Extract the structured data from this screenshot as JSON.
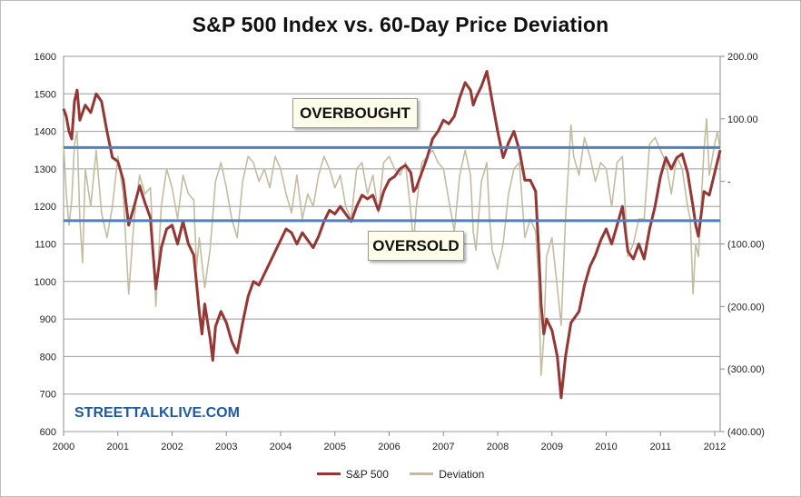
{
  "chart_data": {
    "type": "line",
    "title": "S&P 500 Index vs. 60-Day Price Deviation",
    "x_labels": [
      "2000",
      "2001",
      "2002",
      "2003",
      "2004",
      "2005",
      "2006",
      "2007",
      "2008",
      "2009",
      "2010",
      "2011",
      "2012"
    ],
    "y_left": {
      "min": 600,
      "max": 1600,
      "ticks": [
        1600,
        1500,
        1400,
        1300,
        1200,
        1100,
        1000,
        900,
        800,
        700,
        600
      ]
    },
    "y_right": {
      "min": -400,
      "max": 200,
      "ticks": [
        200,
        100,
        0,
        -100,
        -200,
        -300,
        -400
      ],
      "tick_labels": [
        "200.00",
        "100.00",
        "-",
        "(100.00)",
        "(200.00)",
        "(300.00)",
        "(400.00)"
      ]
    },
    "series": [
      {
        "name": "S&P 500",
        "color": "#953735",
        "axis": "left",
        "points": [
          [
            2000.0,
            1460
          ],
          [
            2000.05,
            1440
          ],
          [
            2000.1,
            1400
          ],
          [
            2000.15,
            1380
          ],
          [
            2000.2,
            1480
          ],
          [
            2000.25,
            1510
          ],
          [
            2000.3,
            1430
          ],
          [
            2000.4,
            1470
          ],
          [
            2000.5,
            1450
          ],
          [
            2000.6,
            1500
          ],
          [
            2000.7,
            1480
          ],
          [
            2000.8,
            1400
          ],
          [
            2000.9,
            1330
          ],
          [
            2001.0,
            1320
          ],
          [
            2001.1,
            1270
          ],
          [
            2001.2,
            1150
          ],
          [
            2001.3,
            1200
          ],
          [
            2001.4,
            1255
          ],
          [
            2001.5,
            1210
          ],
          [
            2001.6,
            1170
          ],
          [
            2001.7,
            980
          ],
          [
            2001.8,
            1090
          ],
          [
            2001.9,
            1140
          ],
          [
            2002.0,
            1150
          ],
          [
            2002.1,
            1100
          ],
          [
            2002.2,
            1160
          ],
          [
            2002.3,
            1100
          ],
          [
            2002.4,
            1070
          ],
          [
            2002.5,
            920
          ],
          [
            2002.55,
            860
          ],
          [
            2002.6,
            940
          ],
          [
            2002.7,
            850
          ],
          [
            2002.75,
            790
          ],
          [
            2002.8,
            880
          ],
          [
            2002.9,
            920
          ],
          [
            2003.0,
            890
          ],
          [
            2003.1,
            840
          ],
          [
            2003.2,
            810
          ],
          [
            2003.3,
            890
          ],
          [
            2003.4,
            960
          ],
          [
            2003.5,
            1000
          ],
          [
            2003.6,
            990
          ],
          [
            2003.7,
            1020
          ],
          [
            2003.8,
            1050
          ],
          [
            2003.9,
            1080
          ],
          [
            2004.0,
            1110
          ],
          [
            2004.1,
            1140
          ],
          [
            2004.2,
            1130
          ],
          [
            2004.3,
            1100
          ],
          [
            2004.4,
            1130
          ],
          [
            2004.5,
            1110
          ],
          [
            2004.6,
            1090
          ],
          [
            2004.7,
            1120
          ],
          [
            2004.8,
            1160
          ],
          [
            2004.9,
            1190
          ],
          [
            2005.0,
            1180
          ],
          [
            2005.1,
            1200
          ],
          [
            2005.2,
            1180
          ],
          [
            2005.3,
            1160
          ],
          [
            2005.4,
            1200
          ],
          [
            2005.5,
            1230
          ],
          [
            2005.6,
            1220
          ],
          [
            2005.7,
            1230
          ],
          [
            2005.8,
            1190
          ],
          [
            2005.9,
            1240
          ],
          [
            2006.0,
            1270
          ],
          [
            2006.1,
            1280
          ],
          [
            2006.2,
            1300
          ],
          [
            2006.3,
            1310
          ],
          [
            2006.4,
            1290
          ],
          [
            2006.45,
            1240
          ],
          [
            2006.5,
            1250
          ],
          [
            2006.6,
            1290
          ],
          [
            2006.7,
            1330
          ],
          [
            2006.8,
            1380
          ],
          [
            2006.9,
            1400
          ],
          [
            2007.0,
            1430
          ],
          [
            2007.1,
            1420
          ],
          [
            2007.2,
            1440
          ],
          [
            2007.3,
            1490
          ],
          [
            2007.4,
            1530
          ],
          [
            2007.5,
            1510
          ],
          [
            2007.55,
            1470
          ],
          [
            2007.6,
            1490
          ],
          [
            2007.7,
            1520
          ],
          [
            2007.8,
            1560
          ],
          [
            2007.85,
            1520
          ],
          [
            2007.9,
            1480
          ],
          [
            2008.0,
            1400
          ],
          [
            2008.1,
            1330
          ],
          [
            2008.2,
            1370
          ],
          [
            2008.3,
            1400
          ],
          [
            2008.4,
            1350
          ],
          [
            2008.5,
            1270
          ],
          [
            2008.6,
            1270
          ],
          [
            2008.7,
            1240
          ],
          [
            2008.75,
            1100
          ],
          [
            2008.8,
            940
          ],
          [
            2008.85,
            860
          ],
          [
            2008.9,
            900
          ],
          [
            2009.0,
            870
          ],
          [
            2009.1,
            800
          ],
          [
            2009.17,
            690
          ],
          [
            2009.25,
            800
          ],
          [
            2009.35,
            890
          ],
          [
            2009.5,
            920
          ],
          [
            2009.6,
            990
          ],
          [
            2009.7,
            1040
          ],
          [
            2009.8,
            1070
          ],
          [
            2009.9,
            1110
          ],
          [
            2010.0,
            1140
          ],
          [
            2010.1,
            1100
          ],
          [
            2010.2,
            1150
          ],
          [
            2010.3,
            1200
          ],
          [
            2010.4,
            1080
          ],
          [
            2010.5,
            1060
          ],
          [
            2010.6,
            1100
          ],
          [
            2010.7,
            1060
          ],
          [
            2010.8,
            1140
          ],
          [
            2010.9,
            1200
          ],
          [
            2011.0,
            1280
          ],
          [
            2011.1,
            1330
          ],
          [
            2011.2,
            1300
          ],
          [
            2011.3,
            1330
          ],
          [
            2011.4,
            1340
          ],
          [
            2011.5,
            1290
          ],
          [
            2011.6,
            1200
          ],
          [
            2011.65,
            1150
          ],
          [
            2011.7,
            1120
          ],
          [
            2011.8,
            1240
          ],
          [
            2011.9,
            1230
          ],
          [
            2012.0,
            1290
          ],
          [
            2012.05,
            1320
          ],
          [
            2012.1,
            1350
          ]
        ]
      },
      {
        "name": "Deviation",
        "color": "#c4bca0",
        "axis": "right",
        "points": [
          [
            2000.0,
            60
          ],
          [
            2000.05,
            -20
          ],
          [
            2000.1,
            -70
          ],
          [
            2000.15,
            -30
          ],
          [
            2000.2,
            60
          ],
          [
            2000.25,
            80
          ],
          [
            2000.3,
            -60
          ],
          [
            2000.35,
            -130
          ],
          [
            2000.4,
            20
          ],
          [
            2000.5,
            -40
          ],
          [
            2000.6,
            50
          ],
          [
            2000.7,
            -50
          ],
          [
            2000.8,
            -90
          ],
          [
            2000.9,
            -40
          ],
          [
            2001.0,
            40
          ],
          [
            2001.1,
            -20
          ],
          [
            2001.2,
            -180
          ],
          [
            2001.3,
            -60
          ],
          [
            2001.4,
            10
          ],
          [
            2001.5,
            -20
          ],
          [
            2001.6,
            -10
          ],
          [
            2001.65,
            -100
          ],
          [
            2001.7,
            -200
          ],
          [
            2001.8,
            -40
          ],
          [
            2001.9,
            20
          ],
          [
            2002.0,
            -10
          ],
          [
            2002.1,
            -60
          ],
          [
            2002.2,
            10
          ],
          [
            2002.3,
            -20
          ],
          [
            2002.4,
            -30
          ],
          [
            2002.45,
            -140
          ],
          [
            2002.5,
            -90
          ],
          [
            2002.6,
            -170
          ],
          [
            2002.7,
            -110
          ],
          [
            2002.8,
            0
          ],
          [
            2002.9,
            30
          ],
          [
            2003.0,
            -10
          ],
          [
            2003.1,
            -60
          ],
          [
            2003.2,
            -90
          ],
          [
            2003.3,
            0
          ],
          [
            2003.4,
            40
          ],
          [
            2003.5,
            30
          ],
          [
            2003.6,
            0
          ],
          [
            2003.7,
            20
          ],
          [
            2003.8,
            -10
          ],
          [
            2003.9,
            40
          ],
          [
            2004.0,
            20
          ],
          [
            2004.1,
            -20
          ],
          [
            2004.2,
            -50
          ],
          [
            2004.3,
            10
          ],
          [
            2004.4,
            -60
          ],
          [
            2004.5,
            -20
          ],
          [
            2004.6,
            -40
          ],
          [
            2004.7,
            10
          ],
          [
            2004.8,
            40
          ],
          [
            2004.9,
            20
          ],
          [
            2005.0,
            -10
          ],
          [
            2005.1,
            10
          ],
          [
            2005.2,
            -40
          ],
          [
            2005.3,
            -60
          ],
          [
            2005.4,
            20
          ],
          [
            2005.5,
            30
          ],
          [
            2005.6,
            -20
          ],
          [
            2005.7,
            10
          ],
          [
            2005.8,
            -50
          ],
          [
            2005.9,
            30
          ],
          [
            2006.0,
            40
          ],
          [
            2006.1,
            20
          ],
          [
            2006.2,
            10
          ],
          [
            2006.3,
            30
          ],
          [
            2006.4,
            -50
          ],
          [
            2006.45,
            -100
          ],
          [
            2006.5,
            -40
          ],
          [
            2006.6,
            30
          ],
          [
            2006.7,
            40
          ],
          [
            2006.8,
            50
          ],
          [
            2006.9,
            30
          ],
          [
            2007.0,
            20
          ],
          [
            2007.1,
            -30
          ],
          [
            2007.2,
            -80
          ],
          [
            2007.3,
            10
          ],
          [
            2007.4,
            50
          ],
          [
            2007.5,
            10
          ],
          [
            2007.55,
            -80
          ],
          [
            2007.6,
            -110
          ],
          [
            2007.7,
            0
          ],
          [
            2007.8,
            30
          ],
          [
            2007.85,
            -60
          ],
          [
            2007.9,
            -110
          ],
          [
            2008.0,
            -140
          ],
          [
            2008.1,
            -100
          ],
          [
            2008.2,
            -20
          ],
          [
            2008.3,
            20
          ],
          [
            2008.4,
            30
          ],
          [
            2008.5,
            -90
          ],
          [
            2008.6,
            -60
          ],
          [
            2008.7,
            -80
          ],
          [
            2008.75,
            -150
          ],
          [
            2008.8,
            -310
          ],
          [
            2008.85,
            -250
          ],
          [
            2008.9,
            -120
          ],
          [
            2009.0,
            -90
          ],
          [
            2009.1,
            -170
          ],
          [
            2009.17,
            -230
          ],
          [
            2009.25,
            -60
          ],
          [
            2009.35,
            90
          ],
          [
            2009.4,
            40
          ],
          [
            2009.5,
            10
          ],
          [
            2009.6,
            70
          ],
          [
            2009.7,
            40
          ],
          [
            2009.8,
            0
          ],
          [
            2009.9,
            30
          ],
          [
            2010.0,
            20
          ],
          [
            2010.1,
            -40
          ],
          [
            2010.2,
            30
          ],
          [
            2010.3,
            40
          ],
          [
            2010.4,
            -120
          ],
          [
            2010.5,
            -100
          ],
          [
            2010.6,
            -60
          ],
          [
            2010.7,
            -60
          ],
          [
            2010.8,
            60
          ],
          [
            2010.9,
            70
          ],
          [
            2011.0,
            50
          ],
          [
            2011.1,
            30
          ],
          [
            2011.2,
            -20
          ],
          [
            2011.3,
            40
          ],
          [
            2011.4,
            20
          ],
          [
            2011.5,
            -40
          ],
          [
            2011.55,
            -60
          ],
          [
            2011.6,
            -180
          ],
          [
            2011.65,
            -100
          ],
          [
            2011.7,
            -120
          ],
          [
            2011.8,
            50
          ],
          [
            2011.85,
            100
          ],
          [
            2011.9,
            10
          ],
          [
            2012.0,
            60
          ],
          [
            2012.05,
            80
          ],
          [
            2012.1,
            50
          ]
        ]
      }
    ],
    "bands": [
      {
        "label": "OVERBOUGHT",
        "value": 1357,
        "axis": "left",
        "color": "#4f81bd"
      },
      {
        "label": "OVERSOLD",
        "value": 1162,
        "axis": "left",
        "color": "#4f81bd"
      }
    ],
    "legend": [
      "S&P 500",
      "Deviation"
    ],
    "legend_position": "bottom"
  },
  "annotations": {
    "overbought": "OVERBOUGHT",
    "oversold": "OVERSOLD",
    "watermark": "STREETTALKLIVE.COM"
  }
}
